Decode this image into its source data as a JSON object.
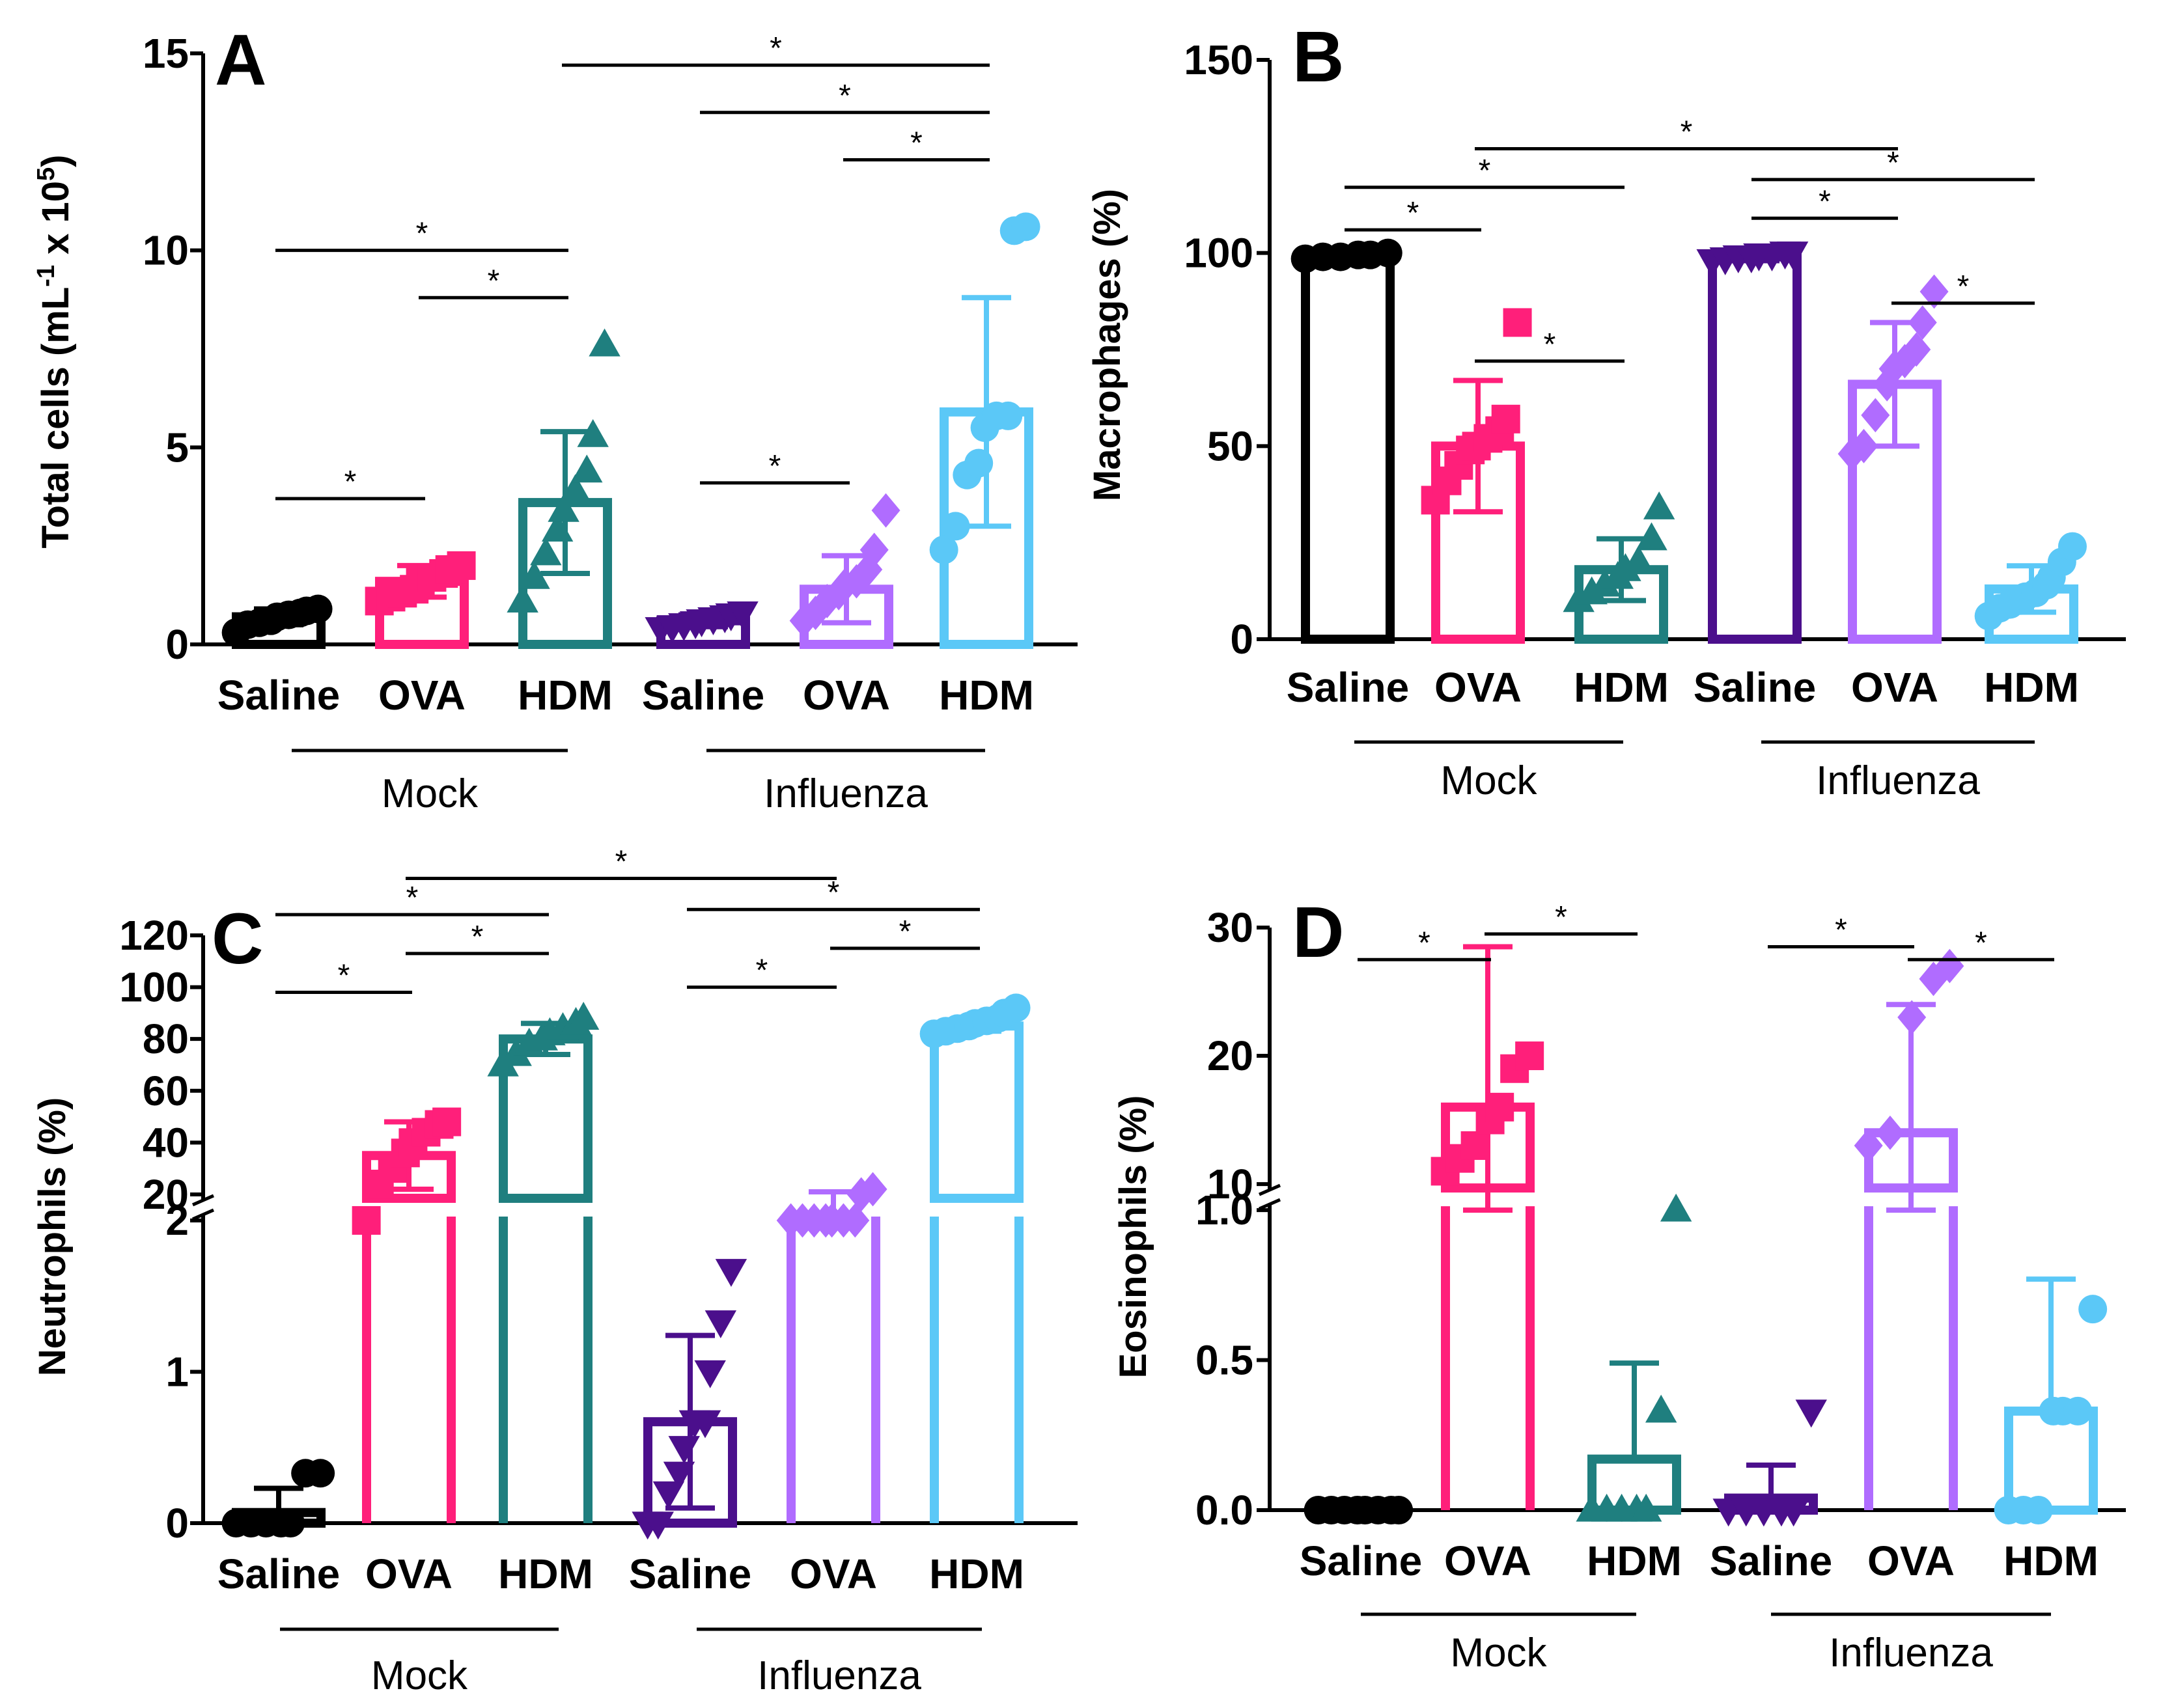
{
  "chart_data": [
    {
      "panel": "A",
      "type": "bar",
      "ylabel": "Total cells (mL-1 x 105)",
      "ylabel_parts": [
        "Total cells (mL",
        "-1",
        " x 10",
        "5",
        ")"
      ],
      "ylim": [
        0,
        15
      ],
      "yticks": [
        "0",
        "5",
        "10",
        "15"
      ],
      "categories": [
        "Saline",
        "OVA",
        "HDM",
        "Saline",
        "OVA",
        "HDM"
      ],
      "groups": [
        "Mock",
        "Influenza"
      ],
      "colors": [
        "#000000",
        "#ff1f7a",
        "#1f7f7f",
        "#4b0f8c",
        "#b06cff",
        "#5bc8f7"
      ],
      "markers": [
        "circle",
        "square",
        "triangle",
        "triangle-down",
        "diamond",
        "circle"
      ],
      "values": [
        0.7,
        1.6,
        3.6,
        0.6,
        1.4,
        5.9
      ],
      "errors": [
        0.2,
        0.4,
        1.8,
        0.15,
        0.85,
        2.9
      ],
      "points": [
        [
          0.3,
          0.5,
          0.55,
          0.6,
          0.7,
          0.75,
          0.8,
          0.85,
          0.9
        ],
        [
          1.1,
          1.2,
          1.3,
          1.4,
          1.6,
          1.7,
          1.8,
          1.9,
          2.0
        ],
        [
          1.1,
          1.7,
          2.3,
          2.9,
          3.4,
          3.9,
          4.4,
          5.3,
          7.6
        ],
        [
          0.4,
          0.45,
          0.5,
          0.55,
          0.6,
          0.65,
          0.7,
          0.75,
          0.8
        ],
        [
          0.6,
          0.8,
          1.1,
          1.3,
          1.5,
          1.6,
          1.9,
          2.4,
          3.4
        ],
        [
          2.4,
          3.0,
          4.3,
          4.6,
          5.5,
          5.8,
          5.8,
          10.5,
          10.6
        ]
      ],
      "significance": [
        {
          "from": 0,
          "to": 1,
          "y": 3.7,
          "label": "*"
        },
        {
          "from": 1,
          "to": 2,
          "y": 8.8,
          "label": "*"
        },
        {
          "from": 0,
          "to": 2,
          "y": 10.0,
          "label": "*"
        },
        {
          "from": 3,
          "to": 4,
          "y": 4.1,
          "label": "*"
        },
        {
          "from": 4,
          "to": 5,
          "y": 12.3,
          "label": "*"
        },
        {
          "from": 3,
          "to": 5,
          "y": 13.5,
          "label": "*"
        },
        {
          "from": 2,
          "to": 5,
          "y": 14.7,
          "label": "*"
        }
      ]
    },
    {
      "panel": "B",
      "type": "bar",
      "ylabel": "Macrophages (%)",
      "ylim": [
        0,
        150
      ],
      "yticks": [
        "0",
        "50",
        "100",
        "150"
      ],
      "categories": [
        "Saline",
        "OVA",
        "HDM",
        "Saline",
        "OVA",
        "HDM"
      ],
      "groups": [
        "Mock",
        "Influenza"
      ],
      "colors": [
        "#000000",
        "#ff1f7a",
        "#1f7f7f",
        "#4b0f8c",
        "#b06cff",
        "#5bc8f7"
      ],
      "markers": [
        "circle",
        "square",
        "triangle",
        "triangle-down",
        "diamond",
        "circle"
      ],
      "values": [
        99,
        50,
        18,
        99,
        66,
        13
      ],
      "errors": [
        1,
        17,
        8,
        1,
        16,
        6
      ],
      "points": [
        [
          98.5,
          99,
          99,
          99.5,
          99.5,
          100
        ],
        [
          36,
          41,
          45,
          49,
          50,
          52,
          54,
          57,
          82
        ],
        [
          10,
          12,
          14,
          16,
          18,
          20,
          26,
          34
        ],
        [
          98,
          98.5,
          99,
          99,
          99.5,
          99.5,
          100,
          100
        ],
        [
          48,
          50,
          58,
          66,
          70,
          72,
          75,
          82,
          90
        ],
        [
          6,
          8,
          9,
          10,
          11,
          12,
          14,
          16,
          20,
          24
        ]
      ],
      "significance": [
        {
          "from": 0,
          "to": 1,
          "y": 106,
          "label": "*"
        },
        {
          "from": 1,
          "to": 2,
          "y": 72,
          "label": "*"
        },
        {
          "from": 0,
          "to": 2,
          "y": 117,
          "label": "*"
        },
        {
          "from": 3,
          "to": 4,
          "y": 109,
          "label": "*"
        },
        {
          "from": 4,
          "to": 5,
          "y": 87,
          "label": "*"
        },
        {
          "from": 3,
          "to": 5,
          "y": 119,
          "label": "*"
        },
        {
          "from": 1,
          "to": 4,
          "y": 127,
          "label": "*"
        }
      ]
    },
    {
      "panel": "C",
      "type": "bar",
      "ylabel": "Neutrophils (%)",
      "axis_break": {
        "lower_max": 2,
        "upper_min": 20,
        "upper_max": 120
      },
      "yticks_lower": [
        "0",
        "1",
        "2"
      ],
      "yticks_upper": [
        "20",
        "40",
        "60",
        "80",
        "100",
        "120"
      ],
      "categories": [
        "Saline",
        "OVA",
        "HDM",
        "Saline",
        "OVA",
        "HDM"
      ],
      "groups": [
        "Mock",
        "Influenza"
      ],
      "colors": [
        "#000000",
        "#ff1f7a",
        "#1f7f7f",
        "#4b0f8c",
        "#b06cff",
        "#5bc8f7"
      ],
      "markers": [
        "circle",
        "square",
        "triangle",
        "triangle-down",
        "diamond",
        "circle"
      ],
      "values": [
        0.07,
        35,
        80,
        0.67,
        17,
        85
      ],
      "errors": [
        0.16,
        13,
        6,
        0.57,
        4,
        2
      ],
      "points": [
        [
          0,
          0,
          0,
          0,
          0,
          0.33,
          0.33
        ],
        [
          18,
          24,
          30,
          36,
          40,
          44,
          47,
          48
        ],
        [
          70,
          74,
          78,
          80,
          82,
          84,
          86,
          88
        ],
        [
          0,
          0,
          0.2,
          0.33,
          0.5,
          0.67,
          0.67,
          1.0,
          1.33,
          1.67
        ],
        [
          13,
          14,
          15,
          16,
          17,
          18,
          19,
          20,
          22
        ],
        [
          82,
          83,
          84,
          85,
          86,
          87,
          88,
          90,
          92
        ]
      ],
      "significance": [
        {
          "from": 0,
          "to": 1,
          "y": 98,
          "label": "*"
        },
        {
          "from": 1,
          "to": 2,
          "y": 113,
          "label": "*"
        },
        {
          "from": 0,
          "to": 2,
          "y": 128,
          "label": "*"
        },
        {
          "from": 3,
          "to": 4,
          "y": 100,
          "label": "*"
        },
        {
          "from": 4,
          "to": 5,
          "y": 115,
          "label": "*"
        },
        {
          "from": 3,
          "to": 5,
          "y": 130,
          "label": "*"
        },
        {
          "from": 1,
          "to": 4,
          "y": 142,
          "label": "*"
        }
      ]
    },
    {
      "panel": "D",
      "type": "bar",
      "ylabel": "Eosinophils (%)",
      "axis_break": {
        "lower_max": 1.0,
        "upper_min": 10,
        "upper_max": 30
      },
      "yticks_lower": [
        "0.0",
        "0.5",
        "1.0"
      ],
      "yticks_upper": [
        "10",
        "20",
        "30"
      ],
      "categories": [
        "Saline",
        "OVA",
        "HDM",
        "Saline",
        "OVA",
        "HDM"
      ],
      "groups": [
        "Mock",
        "Influenza"
      ],
      "colors": [
        "#000000",
        "#ff1f7a",
        "#1f7f7f",
        "#4b0f8c",
        "#b06cff",
        "#5bc8f7"
      ],
      "markers": [
        "circle",
        "square",
        "triangle",
        "triangle-down",
        "diamond",
        "circle"
      ],
      "values": [
        0,
        16,
        0.17,
        0.04,
        14,
        0.33
      ],
      "errors": [
        0,
        12.5,
        0.32,
        0.11,
        10,
        0.44
      ],
      "points": [
        [
          0,
          0,
          0,
          0,
          0,
          0,
          0,
          0
        ],
        [
          11,
          12,
          13,
          15,
          16,
          19,
          20
        ],
        [
          0,
          0,
          0,
          0,
          0,
          0.33,
          1.0
        ],
        [
          0,
          0,
          0,
          0,
          0,
          0.33
        ],
        [
          13,
          14,
          23,
          26,
          27
        ],
        [
          0,
          0,
          0,
          0.33,
          0.33,
          0.33,
          0.67
        ]
      ],
      "significance": [
        {
          "from": 0,
          "to": 1,
          "y": 27.5,
          "label": "*"
        },
        {
          "from": 1,
          "to": 2,
          "y": 29.5,
          "label": "*"
        },
        {
          "from": 3,
          "to": 4,
          "y": 28.5,
          "label": "*"
        },
        {
          "from": 4,
          "to": 5,
          "y": 27.5,
          "label": "*"
        }
      ]
    }
  ]
}
